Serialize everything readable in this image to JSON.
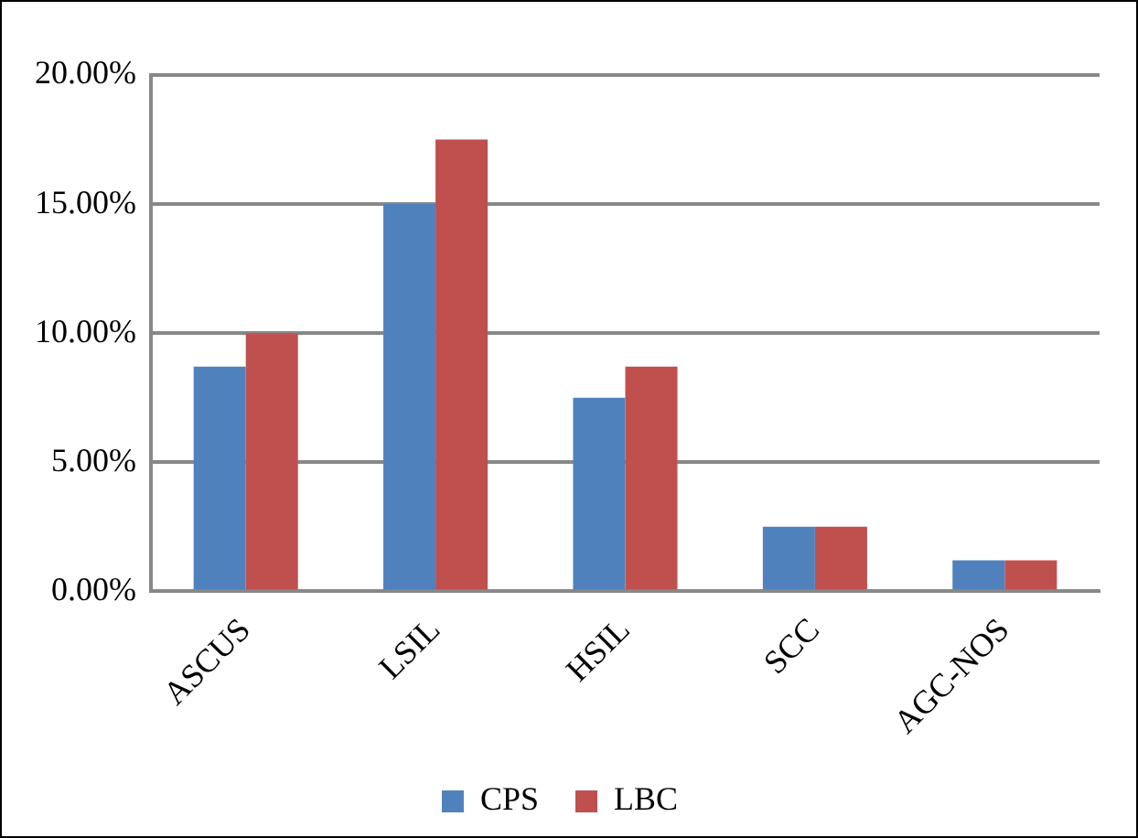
{
  "chart_data": {
    "type": "bar",
    "categories": [
      "ASCUS",
      "LSIL",
      "HSIL",
      "SCC",
      "AGC-NOS"
    ],
    "series": [
      {
        "name": "CPS",
        "color": "#4f81bd",
        "values": [
          8.7,
          15.0,
          7.5,
          2.5,
          1.2
        ]
      },
      {
        "name": "LBC",
        "color": "#c0504d",
        "values": [
          10.0,
          17.5,
          8.7,
          2.5,
          1.2
        ]
      }
    ],
    "ylim": [
      0,
      20
    ],
    "yticks": [
      {
        "value": 0,
        "label": "0.00%"
      },
      {
        "value": 5,
        "label": "5.00%"
      },
      {
        "value": 10,
        "label": "10.00%"
      },
      {
        "value": 15,
        "label": "15.00%"
      },
      {
        "value": 20,
        "label": "20.00%"
      }
    ],
    "grid": "y",
    "legend": "bottom"
  }
}
